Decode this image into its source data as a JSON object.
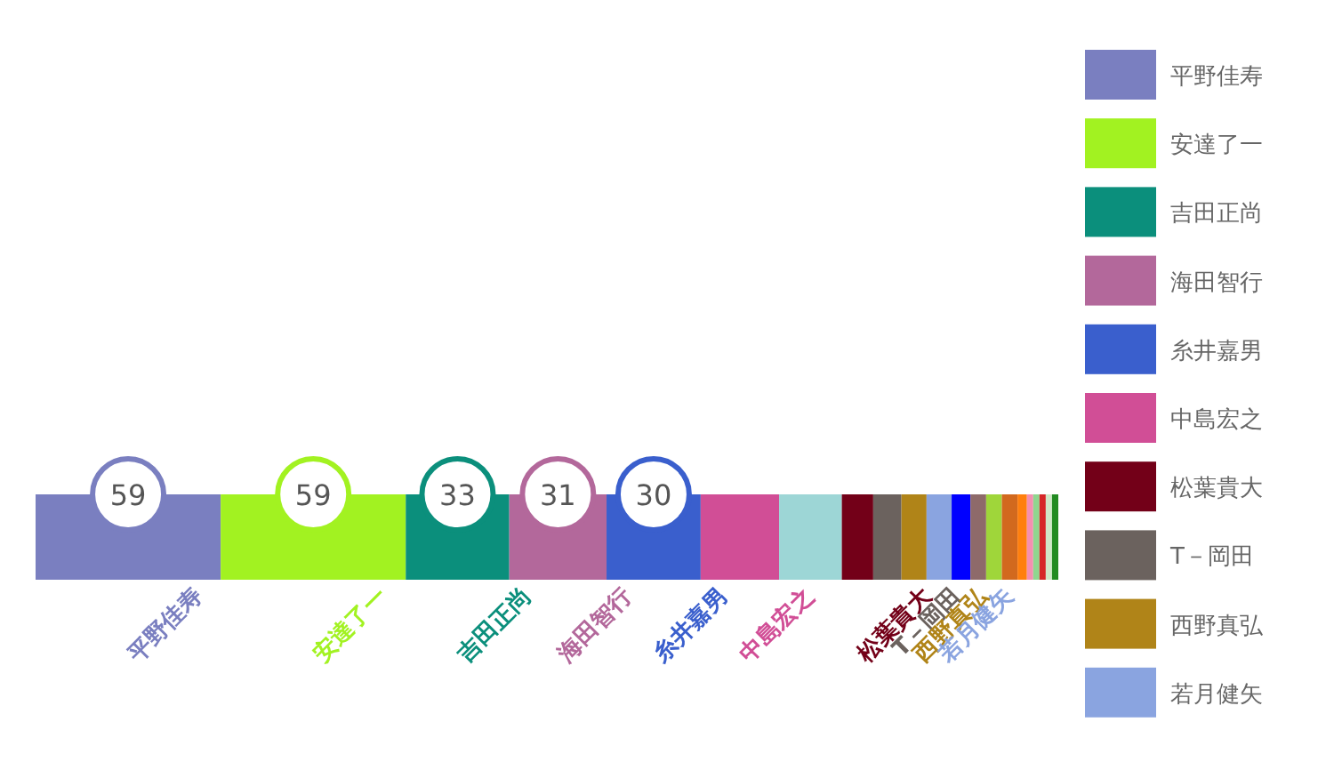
{
  "chart_data": {
    "type": "bar",
    "stacked": true,
    "orientation": "horizontal",
    "categories": [
      null
    ],
    "legend": "right",
    "series": [
      {
        "name": "平野佳寿",
        "color": "#7a7fc0",
        "values": [
          59
        ],
        "value_labels": [
          "59"
        ]
      },
      {
        "name": "安達了一",
        "color": "#a2f221",
        "values": [
          59
        ],
        "value_labels": [
          "59"
        ]
      },
      {
        "name": "吉田正尚",
        "color": "#0b8f7c",
        "values": [
          33
        ],
        "value_labels": [
          "33"
        ]
      },
      {
        "name": "海田智行",
        "color": "#b3689b",
        "values": [
          31
        ],
        "value_labels": [
          "31"
        ]
      },
      {
        "name": "糸井嘉男",
        "color": "#3a5fcd",
        "values": [
          30
        ],
        "value_labels": [
          "30"
        ]
      },
      {
        "name": "中島宏之",
        "color": "#d14e96",
        "values": [
          25
        ]
      },
      {
        "color": "#9dd6d6",
        "values": [
          20
        ]
      },
      {
        "name": "松葉貴大",
        "color": "#730018",
        "values": [
          10
        ]
      },
      {
        "name": "T－岡田",
        "color": "#6b625e",
        "values": [
          9
        ]
      },
      {
        "name": "西野真弘",
        "color": "#b08418",
        "values": [
          8
        ]
      },
      {
        "name": "若月健矢",
        "color": "#8aa4e0",
        "values": [
          8
        ]
      },
      {
        "color": "#0000ff",
        "values": [
          6
        ]
      },
      {
        "color": "#8e6a6a",
        "values": [
          5
        ]
      },
      {
        "color": "#9fd63a",
        "values": [
          5
        ]
      },
      {
        "color": "#d2691e",
        "values": [
          5
        ]
      },
      {
        "color": "#ff7f0e",
        "values": [
          3
        ]
      },
      {
        "color": "#f48fb1",
        "values": [
          2
        ]
      },
      {
        "color": "#8fd68f",
        "values": [
          2
        ]
      },
      {
        "color": "#d62728",
        "values": [
          2
        ]
      },
      {
        "color": "#cfe8c8",
        "values": [
          2
        ]
      },
      {
        "color": "#228b22",
        "values": [
          2
        ]
      }
    ]
  }
}
